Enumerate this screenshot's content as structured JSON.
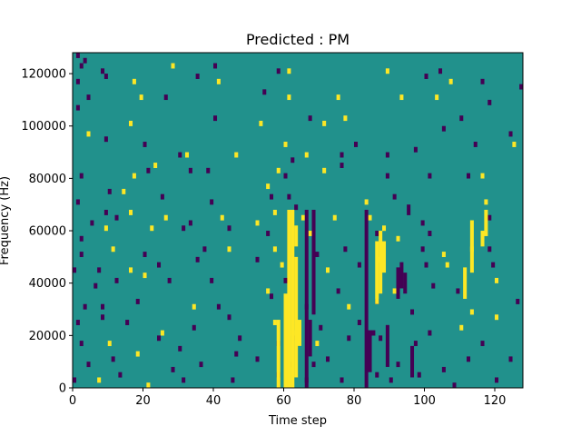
{
  "chart_data": {
    "type": "heatmap",
    "title": "Predicted : PM",
    "xlabel": "Time step",
    "ylabel": "Frequency (Hz)",
    "xlim": [
      0,
      128
    ],
    "ylim": [
      0,
      128000
    ],
    "x_ticks": [
      0,
      20,
      40,
      60,
      80,
      100,
      120
    ],
    "y_ticks": [
      0,
      20000,
      40000,
      60000,
      80000,
      100000,
      120000
    ],
    "y_tick_labels": [
      "0",
      "20000",
      "40000",
      "60000",
      "80000",
      "100000",
      "120000"
    ],
    "n_time_steps": 128,
    "n_freq_bins": 64,
    "freq_bin_hz": 2000,
    "colors": {
      "background": "#21918c",
      "high": "#fde725",
      "low": "#440154"
    },
    "value_legend": {
      "background": 0,
      "high": 1,
      "low": -1
    },
    "cells": [
      [
        1,
        63,
        -1
      ],
      [
        2,
        61,
        -1
      ],
      [
        3,
        62,
        -1
      ],
      [
        8,
        60,
        -1
      ],
      [
        28,
        61,
        1
      ],
      [
        40,
        61,
        -1
      ],
      [
        58,
        60,
        -1
      ],
      [
        61,
        60,
        1
      ],
      [
        89,
        60,
        1
      ],
      [
        104,
        60,
        -1
      ],
      [
        1,
        58,
        -1
      ],
      [
        9,
        59,
        -1
      ],
      [
        17,
        58,
        1
      ],
      [
        35,
        59,
        -1
      ],
      [
        41,
        58,
        1
      ],
      [
        100,
        59,
        -1
      ],
      [
        107,
        58,
        1
      ],
      [
        116,
        58,
        -1
      ],
      [
        127,
        57,
        -1
      ],
      [
        1,
        53,
        -1
      ],
      [
        4,
        55,
        -1
      ],
      [
        19,
        55,
        1
      ],
      [
        26,
        55,
        -1
      ],
      [
        54,
        56,
        -1
      ],
      [
        61,
        55,
        1
      ],
      [
        75,
        55,
        1
      ],
      [
        93,
        55,
        1
      ],
      [
        103,
        55,
        1
      ],
      [
        118,
        54,
        -1
      ],
      [
        4,
        48,
        1
      ],
      [
        9,
        47,
        -1
      ],
      [
        16,
        50,
        1
      ],
      [
        40,
        51,
        -1
      ],
      [
        53,
        50,
        1
      ],
      [
        67,
        51,
        -1
      ],
      [
        71,
        50,
        1
      ],
      [
        77,
        51,
        1
      ],
      [
        105,
        49,
        -1
      ],
      [
        110,
        51,
        -1
      ],
      [
        124,
        48,
        -1
      ],
      [
        20,
        46,
        -1
      ],
      [
        30,
        44,
        -1
      ],
      [
        32,
        44,
        1
      ],
      [
        46,
        44,
        1
      ],
      [
        60,
        46,
        1
      ],
      [
        62,
        43,
        -1
      ],
      [
        66,
        44,
        1
      ],
      [
        76,
        44,
        -1
      ],
      [
        80,
        46,
        -1
      ],
      [
        89,
        44,
        -1
      ],
      [
        97,
        45,
        -1
      ],
      [
        114,
        46,
        -1
      ],
      [
        125,
        46,
        1
      ],
      [
        2,
        40,
        -1
      ],
      [
        17,
        40,
        1
      ],
      [
        21,
        41,
        -1
      ],
      [
        23,
        42,
        1
      ],
      [
        33,
        41,
        -1
      ],
      [
        38,
        41,
        -1
      ],
      [
        58,
        41,
        1
      ],
      [
        60,
        40,
        -1
      ],
      [
        71,
        41,
        1
      ],
      [
        76,
        42,
        -1
      ],
      [
        89,
        40,
        -1
      ],
      [
        101,
        40,
        -1
      ],
      [
        112,
        40,
        -1
      ],
      [
        116,
        40,
        1
      ],
      [
        1,
        35,
        -1
      ],
      [
        10,
        37,
        -1
      ],
      [
        14,
        37,
        1
      ],
      [
        25,
        36,
        -1
      ],
      [
        39,
        35,
        -1
      ],
      [
        55,
        38,
        1
      ],
      [
        56,
        36,
        -1
      ],
      [
        61,
        36,
        -1
      ],
      [
        63,
        34,
        -1
      ],
      [
        83,
        35,
        1
      ],
      [
        91,
        36,
        -1
      ],
      [
        95,
        34,
        -1
      ],
      [
        117,
        35,
        1
      ],
      [
        5,
        31,
        -1
      ],
      [
        9,
        33,
        -1
      ],
      [
        12,
        32,
        -1
      ],
      [
        16,
        33,
        1
      ],
      [
        26,
        32,
        1
      ],
      [
        33,
        31,
        -1
      ],
      [
        42,
        32,
        1
      ],
      [
        52,
        31,
        1
      ],
      [
        57,
        33,
        1
      ],
      [
        65,
        32,
        1
      ],
      [
        74,
        32,
        1
      ],
      [
        84,
        32,
        1
      ],
      [
        95,
        33,
        -1
      ],
      [
        99,
        31,
        -1
      ],
      [
        118,
        32,
        -1
      ],
      [
        2,
        28,
        -1
      ],
      [
        9,
        30,
        1
      ],
      [
        22,
        30,
        1
      ],
      [
        31,
        30,
        -1
      ],
      [
        44,
        30,
        -1
      ],
      [
        55,
        29,
        -1
      ],
      [
        67,
        29,
        1
      ],
      [
        86,
        29,
        -1
      ],
      [
        88,
        30,
        1
      ],
      [
        92,
        28,
        1
      ],
      [
        101,
        29,
        -1
      ],
      [
        117,
        29,
        1
      ],
      [
        2,
        25,
        -1
      ],
      [
        11,
        26,
        1
      ],
      [
        20,
        25,
        -1
      ],
      [
        37,
        26,
        -1
      ],
      [
        44,
        26,
        1
      ],
      [
        57,
        26,
        1
      ],
      [
        69,
        25,
        -1
      ],
      [
        77,
        26,
        -1
      ],
      [
        99,
        26,
        -1
      ],
      [
        105,
        25,
        1
      ],
      [
        113,
        26,
        1
      ],
      [
        118,
        26,
        -1
      ],
      [
        0,
        22,
        -1
      ],
      [
        7,
        22,
        -1
      ],
      [
        16,
        22,
        1
      ],
      [
        24,
        23,
        -1
      ],
      [
        35,
        24,
        -1
      ],
      [
        52,
        24,
        -1
      ],
      [
        59,
        23,
        1
      ],
      [
        72,
        22,
        1
      ],
      [
        81,
        23,
        -1
      ],
      [
        87,
        24,
        1
      ],
      [
        100,
        23,
        -1
      ],
      [
        106,
        23,
        1
      ],
      [
        119,
        23,
        -1
      ],
      [
        6,
        19,
        -1
      ],
      [
        12,
        20,
        -1
      ],
      [
        20,
        21,
        1
      ],
      [
        27,
        20,
        -1
      ],
      [
        39,
        20,
        -1
      ],
      [
        55,
        18,
        1
      ],
      [
        60,
        20,
        -1
      ],
      [
        75,
        18,
        -1
      ],
      [
        91,
        18,
        1
      ],
      [
        102,
        19,
        -1
      ],
      [
        109,
        18,
        -1
      ],
      [
        120,
        20,
        1
      ],
      [
        3,
        15,
        -1
      ],
      [
        8,
        15,
        -1
      ],
      [
        18,
        16,
        -1
      ],
      [
        34,
        15,
        1
      ],
      [
        41,
        15,
        -1
      ],
      [
        56,
        17,
        -1
      ],
      [
        66,
        15,
        -1
      ],
      [
        78,
        15,
        1
      ],
      [
        86,
        16,
        -1
      ],
      [
        96,
        14,
        -1
      ],
      [
        113,
        14,
        1
      ],
      [
        126,
        16,
        -1
      ],
      [
        1,
        12,
        -1
      ],
      [
        8,
        13,
        -1
      ],
      [
        15,
        12,
        -1
      ],
      [
        25,
        10,
        1
      ],
      [
        34,
        11,
        -1
      ],
      [
        44,
        13,
        -1
      ],
      [
        57,
        12,
        1
      ],
      [
        62,
        10,
        1
      ],
      [
        70,
        11,
        -1
      ],
      [
        81,
        12,
        -1
      ],
      [
        85,
        10,
        -1
      ],
      [
        101,
        10,
        -1
      ],
      [
        110,
        11,
        1
      ],
      [
        120,
        13,
        1
      ],
      [
        2,
        8,
        -1
      ],
      [
        10,
        8,
        1
      ],
      [
        24,
        9,
        -1
      ],
      [
        30,
        7,
        -1
      ],
      [
        47,
        9,
        -1
      ],
      [
        58,
        8,
        -1
      ],
      [
        63,
        9,
        -1
      ],
      [
        69,
        8,
        1
      ],
      [
        78,
        9,
        -1
      ],
      [
        87,
        9,
        -1
      ],
      [
        97,
        8,
        -1
      ],
      [
        116,
        8,
        -1
      ],
      [
        4,
        4,
        -1
      ],
      [
        11,
        5,
        -1
      ],
      [
        18,
        6,
        1
      ],
      [
        28,
        3,
        -1
      ],
      [
        36,
        4,
        -1
      ],
      [
        46,
        6,
        -1
      ],
      [
        52,
        5,
        -1
      ],
      [
        61,
        4,
        -1
      ],
      [
        68,
        4,
        -1
      ],
      [
        72,
        5,
        -1
      ],
      [
        92,
        4,
        -1
      ],
      [
        105,
        3,
        -1
      ],
      [
        112,
        5,
        -1
      ],
      [
        124,
        5,
        -1
      ],
      [
        0,
        1,
        -1
      ],
      [
        7,
        1,
        1
      ],
      [
        13,
        2,
        -1
      ],
      [
        21,
        0,
        1
      ],
      [
        31,
        1,
        -1
      ],
      [
        45,
        1,
        -1
      ],
      [
        58,
        2,
        -1
      ],
      [
        66,
        1,
        -1
      ],
      [
        76,
        1,
        -1
      ],
      [
        86,
        2,
        -1
      ],
      [
        90,
        1,
        -1
      ],
      [
        98,
        2,
        -1
      ],
      [
        108,
        0,
        -1
      ],
      [
        120,
        1,
        -1
      ]
    ],
    "high_columns": [
      [
        58,
        0,
        12
      ],
      [
        60,
        0,
        17
      ],
      [
        61,
        0,
        33
      ],
      [
        62,
        0,
        33
      ],
      [
        63,
        2,
        24
      ],
      [
        63,
        27,
        30
      ],
      [
        64,
        8,
        12
      ],
      [
        86,
        16,
        27
      ],
      [
        87,
        18,
        29
      ],
      [
        88,
        22,
        27
      ],
      [
        111,
        17,
        22
      ],
      [
        113,
        22,
        31
      ],
      [
        116,
        27,
        29
      ],
      [
        117,
        30,
        33
      ]
    ],
    "low_columns": [
      [
        66,
        0,
        33
      ],
      [
        67,
        6,
        12
      ],
      [
        68,
        14,
        33
      ],
      [
        83,
        0,
        33
      ],
      [
        84,
        3,
        10
      ],
      [
        89,
        4,
        11
      ],
      [
        92,
        17,
        22
      ],
      [
        93,
        19,
        23
      ],
      [
        94,
        18,
        21
      ],
      [
        96,
        2,
        7
      ]
    ]
  }
}
